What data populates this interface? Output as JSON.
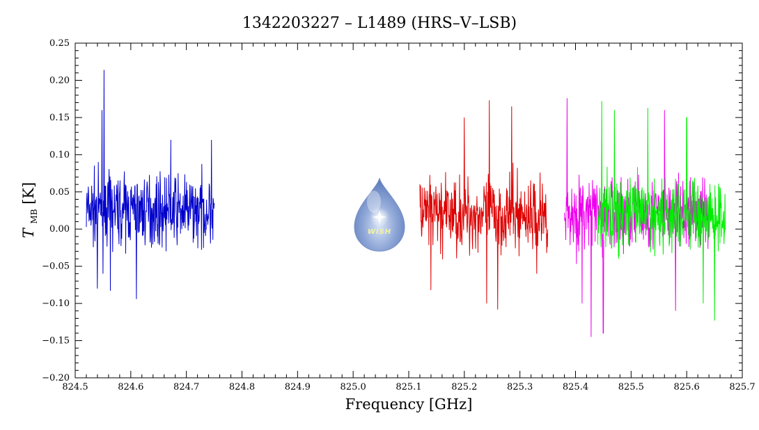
{
  "chart_data": {
    "type": "line",
    "title": "1342203227 – L1489 (HRS–V–LSB)",
    "xlabel": "Frequency [GHz]",
    "ylabel_main": "T",
    "ylabel_sub": "MB",
    "ylabel_unit": "[K]",
    "xlim": [
      824.5,
      825.7
    ],
    "ylim": [
      -0.2,
      0.25
    ],
    "x_ticks": [
      "824.5",
      "824.6",
      "824.7",
      "824.8",
      "824.9",
      "825.0",
      "825.1",
      "825.2",
      "825.3",
      "825.4",
      "825.5",
      "825.6",
      "825.7"
    ],
    "y_ticks": [
      "−0.20",
      "−0.15",
      "−0.10",
      "−0.05",
      "0.00",
      "0.05",
      "0.10",
      "0.15",
      "0.20",
      "0.25"
    ],
    "grid": false,
    "logo_text": "WISH",
    "series": [
      {
        "color": "#0000cc",
        "x_range": [
          824.52,
          824.75
        ],
        "mean": 0.025,
        "amplitude": 0.055,
        "spikes": [
          [
            824.552,
            0.214
          ],
          [
            824.548,
            0.16
          ],
          [
            824.55,
            -0.06
          ],
          [
            824.563,
            -0.083
          ],
          [
            824.61,
            -0.094
          ],
          [
            824.672,
            0.12
          ],
          [
            824.745,
            0.12
          ],
          [
            824.54,
            -0.08
          ]
        ]
      },
      {
        "color": "#dd0000",
        "x_range": [
          825.12,
          825.35
        ],
        "mean": 0.02,
        "amplitude": 0.06,
        "spikes": [
          [
            825.245,
            0.173
          ],
          [
            825.285,
            0.165
          ],
          [
            825.26,
            -0.108
          ],
          [
            825.24,
            -0.1
          ],
          [
            825.14,
            -0.082
          ],
          [
            825.33,
            -0.06
          ],
          [
            825.2,
            0.15
          ]
        ]
      },
      {
        "color": "#ee00ee",
        "x_range": [
          825.38,
          825.64
        ],
        "mean": 0.02,
        "amplitude": 0.06,
        "spikes": [
          [
            825.385,
            0.176
          ],
          [
            825.428,
            -0.145
          ],
          [
            825.45,
            -0.14
          ],
          [
            825.58,
            -0.11
          ],
          [
            825.412,
            -0.1
          ],
          [
            825.56,
            0.16
          ]
        ]
      },
      {
        "color": "#00ee00",
        "x_range": [
          825.44,
          825.67
        ],
        "mean": 0.02,
        "amplitude": 0.06,
        "spikes": [
          [
            825.447,
            0.172
          ],
          [
            825.47,
            0.16
          ],
          [
            825.65,
            -0.123
          ],
          [
            825.53,
            0.163
          ],
          [
            825.63,
            -0.1
          ],
          [
            825.6,
            0.15
          ]
        ]
      }
    ]
  }
}
